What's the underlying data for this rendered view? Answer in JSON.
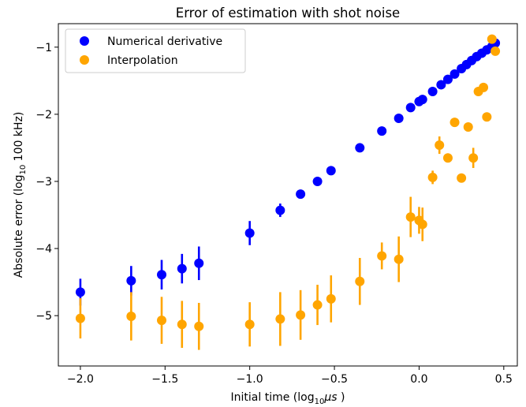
{
  "chart_data": {
    "type": "scatter",
    "title": "Error of estimation with shot noise",
    "xlabel": "Initial time (log10μs )",
    "ylabel": "Absolute error (log10 100 kHz)",
    "xlim": [
      -2.13,
      0.58
    ],
    "ylim": [
      -5.75,
      -0.65
    ],
    "x_ticks": [
      -2.0,
      -1.5,
      -1.0,
      -0.5,
      0.0,
      0.5
    ],
    "x_tick_labels": [
      "−2.0",
      "−1.5",
      "−1.0",
      "−0.5",
      "0.0",
      "0.5"
    ],
    "y_ticks": [
      -5,
      -4,
      -3,
      -2,
      -1
    ],
    "y_tick_labels": [
      "−5",
      "−4",
      "−3",
      "−2",
      "−1"
    ],
    "grid": false,
    "legend_position": "upper-left",
    "series": [
      {
        "name": "Numerical derivative",
        "color": "#0000ff",
        "points": [
          {
            "x": -2.0,
            "y": -4.65,
            "err": 0.2
          },
          {
            "x": -1.7,
            "y": -4.48,
            "err": 0.22
          },
          {
            "x": -1.52,
            "y": -4.39,
            "err": 0.22
          },
          {
            "x": -1.4,
            "y": -4.3,
            "err": 0.22
          },
          {
            "x": -1.3,
            "y": -4.22,
            "err": 0.25
          },
          {
            "x": -1.0,
            "y": -3.77,
            "err": 0.18
          },
          {
            "x": -0.82,
            "y": -3.43,
            "err": 0.1
          },
          {
            "x": -0.7,
            "y": -3.19,
            "err": 0.05
          },
          {
            "x": -0.6,
            "y": -3.0,
            "err": 0.04
          },
          {
            "x": -0.52,
            "y": -2.84,
            "err": 0.03
          },
          {
            "x": -0.35,
            "y": -2.5,
            "err": 0.02
          },
          {
            "x": -0.22,
            "y": -2.25,
            "err": 0.02
          },
          {
            "x": -0.12,
            "y": -2.06,
            "err": 0.02
          },
          {
            "x": -0.05,
            "y": -1.9,
            "err": 0.01
          },
          {
            "x": 0.0,
            "y": -1.81,
            "err": 0.01
          },
          {
            "x": 0.02,
            "y": -1.78,
            "err": 0.01
          },
          {
            "x": 0.08,
            "y": -1.66,
            "err": 0.01
          },
          {
            "x": 0.13,
            "y": -1.56,
            "err": 0.01
          },
          {
            "x": 0.17,
            "y": -1.48,
            "err": 0.01
          },
          {
            "x": 0.21,
            "y": -1.4,
            "err": 0.01
          },
          {
            "x": 0.25,
            "y": -1.32,
            "err": 0.01
          },
          {
            "x": 0.28,
            "y": -1.26,
            "err": 0.01
          },
          {
            "x": 0.31,
            "y": -1.2,
            "err": 0.01
          },
          {
            "x": 0.34,
            "y": -1.14,
            "err": 0.01
          },
          {
            "x": 0.37,
            "y": -1.09,
            "err": 0.01
          },
          {
            "x": 0.4,
            "y": -1.04,
            "err": 0.01
          },
          {
            "x": 0.43,
            "y": -0.99,
            "err": 0.01
          },
          {
            "x": 0.45,
            "y": -0.94,
            "err": 0.01
          }
        ]
      },
      {
        "name": "Interpolation",
        "color": "#ffa500",
        "points": [
          {
            "x": -2.0,
            "y": -5.04,
            "err": 0.3
          },
          {
            "x": -1.7,
            "y": -5.01,
            "err": 0.36
          },
          {
            "x": -1.52,
            "y": -5.07,
            "err": 0.35
          },
          {
            "x": -1.4,
            "y": -5.13,
            "err": 0.35
          },
          {
            "x": -1.3,
            "y": -5.16,
            "err": 0.35
          },
          {
            "x": -1.0,
            "y": -5.13,
            "err": 0.33
          },
          {
            "x": -0.82,
            "y": -5.05,
            "err": 0.4
          },
          {
            "x": -0.7,
            "y": -4.99,
            "err": 0.37
          },
          {
            "x": -0.6,
            "y": -4.84,
            "err": 0.3
          },
          {
            "x": -0.52,
            "y": -4.75,
            "err": 0.35
          },
          {
            "x": -0.35,
            "y": -4.49,
            "err": 0.35
          },
          {
            "x": -0.22,
            "y": -4.11,
            "err": 0.2
          },
          {
            "x": -0.12,
            "y": -4.16,
            "err": 0.34
          },
          {
            "x": -0.05,
            "y": -3.53,
            "err": 0.3
          },
          {
            "x": 0.0,
            "y": -3.58,
            "err": 0.2
          },
          {
            "x": 0.02,
            "y": -3.64,
            "err": 0.25
          },
          {
            "x": 0.08,
            "y": -2.94,
            "err": 0.1
          },
          {
            "x": 0.12,
            "y": -2.46,
            "err": 0.13
          },
          {
            "x": 0.17,
            "y": -2.65,
            "err": 0.06
          },
          {
            "x": 0.21,
            "y": -2.12,
            "err": 0.04
          },
          {
            "x": 0.25,
            "y": -2.95,
            "err": 0.06
          },
          {
            "x": 0.29,
            "y": -2.19,
            "err": 0.06
          },
          {
            "x": 0.32,
            "y": -2.65,
            "err": 0.15
          },
          {
            "x": 0.35,
            "y": -1.66,
            "err": 0.05
          },
          {
            "x": 0.38,
            "y": -1.6,
            "err": 0.05
          },
          {
            "x": 0.4,
            "y": -2.04,
            "err": 0.04
          },
          {
            "x": 0.43,
            "y": -0.88,
            "err": 0.03
          },
          {
            "x": 0.45,
            "y": -1.06,
            "err": 0.04
          }
        ]
      }
    ]
  }
}
